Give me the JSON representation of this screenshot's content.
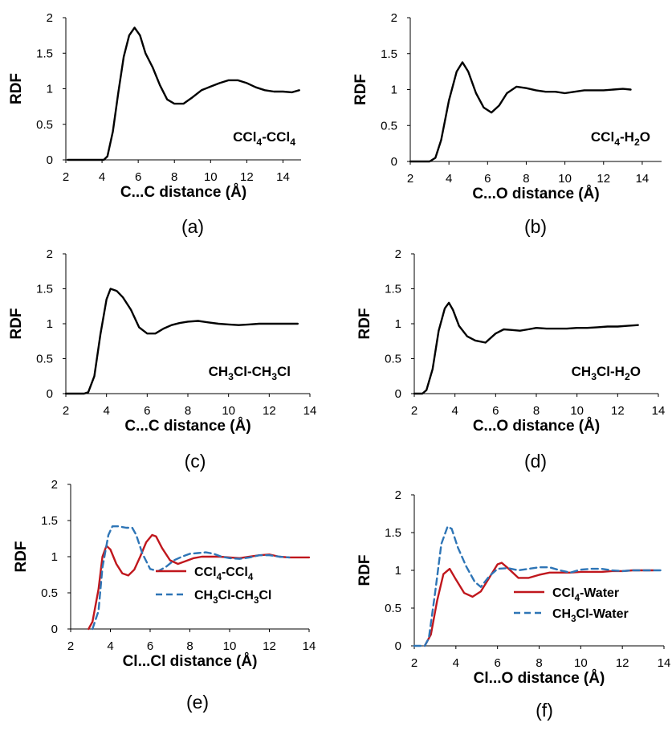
{
  "chart_data": [
    {
      "type": "line",
      "panel_label": "(a)",
      "xlabel": "C...C distance (Å)",
      "ylabel": "RDF",
      "xlim": [
        2,
        15
      ],
      "ylim": [
        0,
        2
      ],
      "xticks": [
        "2",
        "4",
        "6",
        "8",
        "10",
        "12",
        "14"
      ],
      "yticks": [
        "0",
        "0.5",
        "1",
        "1.5",
        "2"
      ],
      "annotation": [
        {
          "t": "CCl"
        },
        {
          "t": "4",
          "sub": true
        },
        {
          "t": "-CCl"
        },
        {
          "t": "4",
          "sub": true
        }
      ],
      "series": [
        {
          "color": "#000000",
          "dash": "solid",
          "x": [
            2.1,
            4.1,
            4.3,
            4.6,
            4.9,
            5.2,
            5.5,
            5.8,
            6.1,
            6.4,
            6.8,
            7.2,
            7.6,
            8.0,
            8.5,
            9.0,
            9.5,
            10.0,
            10.5,
            11.0,
            11.5,
            12.0,
            12.5,
            13.0,
            13.5,
            14.0,
            14.5,
            14.9
          ],
          "y": [
            0,
            0,
            0.05,
            0.4,
            0.95,
            1.45,
            1.75,
            1.86,
            1.75,
            1.5,
            1.3,
            1.05,
            0.85,
            0.79,
            0.79,
            0.88,
            0.98,
            1.03,
            1.08,
            1.12,
            1.12,
            1.08,
            1.02,
            0.98,
            0.96,
            0.96,
            0.95,
            0.98
          ]
        }
      ]
    },
    {
      "type": "line",
      "panel_label": "(b)",
      "xlabel": "C...O distance (Å)",
      "ylabel": "RDF",
      "xlim": [
        2,
        15
      ],
      "ylim": [
        0,
        2
      ],
      "xticks": [
        "2",
        "4",
        "6",
        "8",
        "10",
        "12",
        "14"
      ],
      "yticks": [
        "0",
        "0.5",
        "1",
        "1.5",
        "2"
      ],
      "annotation": [
        {
          "t": "CCl"
        },
        {
          "t": "4",
          "sub": true
        },
        {
          "t": "-H"
        },
        {
          "t": "2",
          "sub": true
        },
        {
          "t": "O"
        }
      ],
      "series": [
        {
          "color": "#000000",
          "dash": "solid",
          "x": [
            2.0,
            3.0,
            3.3,
            3.6,
            4.0,
            4.4,
            4.7,
            5.0,
            5.4,
            5.8,
            6.2,
            6.6,
            7.0,
            7.5,
            8.0,
            8.5,
            9.0,
            9.5,
            10.0,
            10.5,
            11.0,
            11.5,
            12.0,
            12.5,
            13.0,
            13.4
          ],
          "y": [
            0,
            0,
            0.05,
            0.3,
            0.85,
            1.25,
            1.38,
            1.25,
            0.95,
            0.75,
            0.68,
            0.78,
            0.95,
            1.04,
            1.02,
            0.99,
            0.97,
            0.97,
            0.95,
            0.97,
            0.99,
            0.99,
            0.99,
            1.0,
            1.01,
            1.0
          ]
        }
      ]
    },
    {
      "type": "line",
      "panel_label": "(c)",
      "xlabel": "C...C distance (Å)",
      "ylabel": "RDF",
      "xlim": [
        2,
        14
      ],
      "ylim": [
        0,
        2
      ],
      "xticks": [
        "2",
        "4",
        "6",
        "8",
        "10",
        "12",
        "14"
      ],
      "yticks": [
        "0",
        "0.5",
        "1",
        "1.5",
        "2"
      ],
      "annotation": [
        {
          "t": "CH"
        },
        {
          "t": "3",
          "sub": true
        },
        {
          "t": "Cl-CH"
        },
        {
          "t": "3",
          "sub": true
        },
        {
          "t": "Cl"
        }
      ],
      "series": [
        {
          "color": "#000000",
          "dash": "solid",
          "x": [
            2.0,
            2.9,
            3.1,
            3.4,
            3.7,
            4.0,
            4.2,
            4.5,
            4.8,
            5.2,
            5.6,
            6.0,
            6.4,
            6.8,
            7.2,
            7.6,
            8.0,
            8.5,
            9.0,
            9.5,
            10.0,
            10.5,
            11.0,
            11.5,
            12.0,
            12.5,
            13.0,
            13.4
          ],
          "y": [
            0,
            0,
            0.02,
            0.25,
            0.85,
            1.35,
            1.5,
            1.47,
            1.38,
            1.2,
            0.95,
            0.86,
            0.86,
            0.93,
            0.98,
            1.01,
            1.03,
            1.04,
            1.02,
            1.0,
            0.99,
            0.98,
            0.99,
            1.0,
            1.0,
            1.0,
            1.0,
            1.0
          ]
        }
      ]
    },
    {
      "type": "line",
      "panel_label": "(d)",
      "xlabel": "C...O distance (Å)",
      "ylabel": "RDF",
      "xlim": [
        2,
        14
      ],
      "ylim": [
        0,
        2
      ],
      "xticks": [
        "2",
        "4",
        "6",
        "8",
        "10",
        "12",
        "14"
      ],
      "yticks": [
        "0",
        "0.5",
        "1",
        "1.5",
        "2"
      ],
      "annotation": [
        {
          "t": "CH"
        },
        {
          "t": "3",
          "sub": true
        },
        {
          "t": "Cl-H"
        },
        {
          "t": "2",
          "sub": true
        },
        {
          "t": "O"
        }
      ],
      "series": [
        {
          "color": "#000000",
          "dash": "solid",
          "x": [
            2.0,
            2.4,
            2.6,
            2.9,
            3.2,
            3.5,
            3.7,
            3.9,
            4.2,
            4.6,
            5.0,
            5.5,
            6.0,
            6.4,
            6.8,
            7.2,
            7.6,
            8.0,
            8.5,
            9.0,
            9.5,
            10.0,
            10.5,
            11.0,
            11.5,
            12.0,
            12.5,
            13.0
          ],
          "y": [
            0,
            0,
            0.05,
            0.35,
            0.9,
            1.22,
            1.3,
            1.2,
            0.97,
            0.82,
            0.76,
            0.73,
            0.86,
            0.92,
            0.91,
            0.9,
            0.92,
            0.94,
            0.93,
            0.93,
            0.93,
            0.94,
            0.94,
            0.95,
            0.96,
            0.96,
            0.97,
            0.98
          ]
        }
      ]
    },
    {
      "type": "line",
      "panel_label": "(e)",
      "xlabel": "Cl...Cl distance (Å)",
      "ylabel": "RDF",
      "xlim": [
        2,
        14
      ],
      "ylim": [
        0,
        2
      ],
      "xticks": [
        "2",
        "4",
        "6",
        "8",
        "10",
        "12",
        "14"
      ],
      "yticks": [
        "0",
        "0.5",
        "1",
        "1.5",
        "2"
      ],
      "series": [
        {
          "name": [
            {
              "t": "CCl"
            },
            {
              "t": "4",
              "sub": true
            },
            {
              "t": "-CCl"
            },
            {
              "t": "4",
              "sub": true
            }
          ],
          "color": "#c0171d",
          "dash": "solid",
          "x": [
            2.9,
            3.1,
            3.4,
            3.6,
            3.8,
            4.0,
            4.3,
            4.6,
            4.9,
            5.2,
            5.5,
            5.8,
            6.1,
            6.3,
            6.6,
            7.0,
            7.4,
            7.8,
            8.2,
            8.6,
            9.0,
            9.5,
            10.0,
            10.5,
            11.0,
            11.5,
            12.0,
            12.5,
            13.0,
            13.5,
            14.0
          ],
          "y": [
            0,
            0.1,
            0.55,
            1.0,
            1.15,
            1.1,
            0.9,
            0.77,
            0.74,
            0.82,
            1.0,
            1.2,
            1.3,
            1.28,
            1.12,
            0.95,
            0.9,
            0.94,
            0.98,
            1.0,
            1.0,
            1.0,
            0.99,
            0.98,
            1.0,
            1.02,
            1.03,
            1.0,
            0.99,
            0.99,
            0.99
          ]
        },
        {
          "name": [
            {
              "t": "CH"
            },
            {
              "t": "3",
              "sub": true
            },
            {
              "t": "Cl-CH"
            },
            {
              "t": "3",
              "sub": true
            },
            {
              "t": "Cl"
            }
          ],
          "color": "#2e75b6",
          "dash": "dashed",
          "x": [
            3.1,
            3.4,
            3.6,
            3.9,
            4.1,
            4.4,
            4.8,
            5.1,
            5.3,
            5.6,
            6.0,
            6.4,
            6.8,
            7.2,
            7.6,
            8.0,
            8.4,
            8.8,
            9.2,
            9.6,
            10.0,
            10.5,
            11.0,
            11.5,
            12.0,
            12.5,
            13.0
          ],
          "y": [
            0,
            0.25,
            0.85,
            1.3,
            1.42,
            1.42,
            1.4,
            1.4,
            1.3,
            1.05,
            0.83,
            0.8,
            0.86,
            0.95,
            1.0,
            1.04,
            1.05,
            1.06,
            1.04,
            1.0,
            0.98,
            0.97,
            0.99,
            1.02,
            1.02,
            1.0,
            0.99
          ]
        }
      ]
    },
    {
      "type": "line",
      "panel_label": "(f)",
      "xlabel": "Cl...O distance (Å)",
      "ylabel": "RDF",
      "xlim": [
        2,
        14
      ],
      "ylim": [
        0,
        2
      ],
      "xticks": [
        "2",
        "4",
        "6",
        "8",
        "10",
        "12",
        "14"
      ],
      "yticks": [
        "0",
        "0.5",
        "1",
        "1.5",
        "2"
      ],
      "series": [
        {
          "name": [
            {
              "t": "CCl"
            },
            {
              "t": "4",
              "sub": true
            },
            {
              "t": "-Water"
            }
          ],
          "color": "#c0171d",
          "dash": "solid",
          "x": [
            2.5,
            2.8,
            3.1,
            3.4,
            3.7,
            4.0,
            4.4,
            4.8,
            5.2,
            5.6,
            6.0,
            6.2,
            6.5,
            7.0,
            7.5,
            8.0,
            8.5,
            9.0,
            9.5,
            10.0,
            10.5,
            11.0,
            11.5,
            12.0,
            12.5,
            13.0,
            13.5
          ],
          "y": [
            0,
            0.15,
            0.6,
            0.95,
            1.02,
            0.88,
            0.7,
            0.65,
            0.72,
            0.9,
            1.08,
            1.1,
            1.03,
            0.9,
            0.9,
            0.94,
            0.97,
            0.97,
            0.97,
            0.98,
            0.98,
            0.98,
            0.99,
            0.99,
            1.0,
            1.0,
            1.0
          ]
        },
        {
          "name": [
            {
              "t": "CH"
            },
            {
              "t": "3",
              "sub": true
            },
            {
              "t": "Cl-Water"
            }
          ],
          "color": "#2e75b6",
          "dash": "dashed",
          "x": [
            2.0,
            2.5,
            2.7,
            3.0,
            3.3,
            3.6,
            3.8,
            4.1,
            4.5,
            4.9,
            5.2,
            5.6,
            6.0,
            6.5,
            7.0,
            7.5,
            8.0,
            8.5,
            9.0,
            9.5,
            10.0,
            10.5,
            11.0,
            11.5,
            12.0,
            12.5,
            13.0,
            13.5,
            14.0
          ],
          "y": [
            0,
            0,
            0.1,
            0.7,
            1.35,
            1.58,
            1.55,
            1.3,
            1.05,
            0.85,
            0.78,
            0.92,
            1.02,
            1.03,
            1.0,
            1.02,
            1.04,
            1.04,
            1.0,
            0.97,
            1.01,
            1.02,
            1.02,
            1.0,
            0.99,
            1.0,
            1.0,
            1.0,
            1.0
          ]
        }
      ]
    }
  ]
}
